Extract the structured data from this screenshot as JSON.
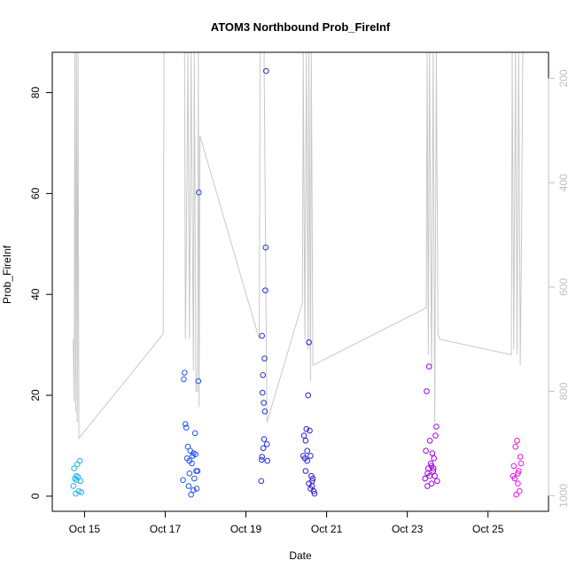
{
  "chart_data": {
    "type": "scatter",
    "title": "ATOM3 Northbound Prob_FireInf",
    "xlabel": "Date",
    "ylabel": "Prob_FireInf",
    "xlim": [
      14.2,
      26.5
    ],
    "ylim": [
      -3,
      88
    ],
    "y_ticks": [
      0,
      20,
      40,
      60,
      80
    ],
    "x_ticks": [
      {
        "value": 15,
        "label": "Oct 15"
      },
      {
        "value": 17,
        "label": "Oct 17"
      },
      {
        "value": 19,
        "label": "Oct 19"
      },
      {
        "value": 21,
        "label": "Oct 21"
      },
      {
        "value": 23,
        "label": "Oct 23"
      },
      {
        "value": 25,
        "label": "Oct 25"
      }
    ],
    "y2_reversed": true,
    "y2lim": [
      1030,
      150
    ],
    "y2_ticks": [
      200,
      400,
      600,
      800,
      1000
    ],
    "grid": false,
    "point_color_gradient": [
      "#22b4e8",
      "#2255ee",
      "#2222cc",
      "#8800dd",
      "#ee11ee"
    ],
    "line_color": "#c8c8c8",
    "points": [
      {
        "x": 14.72,
        "y": 2.0
      },
      {
        "x": 14.74,
        "y": 5.5
      },
      {
        "x": 14.76,
        "y": 3.5
      },
      {
        "x": 14.78,
        "y": 0.5
      },
      {
        "x": 14.8,
        "y": 4.0
      },
      {
        "x": 14.82,
        "y": 6.3
      },
      {
        "x": 14.84,
        "y": 3.8
      },
      {
        "x": 14.86,
        "y": 1.0
      },
      {
        "x": 14.88,
        "y": 7.0
      },
      {
        "x": 14.9,
        "y": 3.0
      },
      {
        "x": 14.92,
        "y": 0.8
      },
      {
        "x": 14.8,
        "y": 3.2
      },
      {
        "x": 17.44,
        "y": 3.2
      },
      {
        "x": 17.46,
        "y": 23.2
      },
      {
        "x": 17.48,
        "y": 24.5
      },
      {
        "x": 17.5,
        "y": 14.3
      },
      {
        "x": 17.52,
        "y": 13.6
      },
      {
        "x": 17.54,
        "y": 7.5
      },
      {
        "x": 17.56,
        "y": 9.8
      },
      {
        "x": 17.58,
        "y": 2.0
      },
      {
        "x": 17.6,
        "y": 7.0
      },
      {
        "x": 17.62,
        "y": 9.0
      },
      {
        "x": 17.64,
        "y": 0.3
      },
      {
        "x": 17.66,
        "y": 6.5
      },
      {
        "x": 17.68,
        "y": 8.0
      },
      {
        "x": 17.7,
        "y": 1.2
      },
      {
        "x": 17.72,
        "y": 3.5
      },
      {
        "x": 17.74,
        "y": 12.5
      },
      {
        "x": 17.75,
        "y": 8.3
      },
      {
        "x": 17.77,
        "y": 5.0
      },
      {
        "x": 17.78,
        "y": 1.5
      },
      {
        "x": 17.8,
        "y": 5.0
      },
      {
        "x": 17.82,
        "y": 22.8
      },
      {
        "x": 17.83,
        "y": 60.2
      },
      {
        "x": 17.6,
        "y": 4.5
      },
      {
        "x": 17.7,
        "y": 8.5
      },
      {
        "x": 19.38,
        "y": 3.0
      },
      {
        "x": 19.39,
        "y": 7.2
      },
      {
        "x": 19.4,
        "y": 31.8
      },
      {
        "x": 19.41,
        "y": 20.5
      },
      {
        "x": 19.42,
        "y": 24.0
      },
      {
        "x": 19.43,
        "y": 9.5
      },
      {
        "x": 19.44,
        "y": 18.5
      },
      {
        "x": 19.45,
        "y": 11.3
      },
      {
        "x": 19.46,
        "y": 27.3
      },
      {
        "x": 19.47,
        "y": 16.8
      },
      {
        "x": 19.48,
        "y": 40.8
      },
      {
        "x": 19.49,
        "y": 49.3
      },
      {
        "x": 19.5,
        "y": 84.3
      },
      {
        "x": 19.52,
        "y": 10.3
      },
      {
        "x": 19.53,
        "y": 7.0
      },
      {
        "x": 19.4,
        "y": 7.8
      },
      {
        "x": 20.42,
        "y": 8.0
      },
      {
        "x": 20.44,
        "y": 12.0
      },
      {
        "x": 20.46,
        "y": 7.5
      },
      {
        "x": 20.48,
        "y": 11.0
      },
      {
        "x": 20.5,
        "y": 13.3
      },
      {
        "x": 20.52,
        "y": 9.0
      },
      {
        "x": 20.54,
        "y": 20.0
      },
      {
        "x": 20.56,
        "y": 30.5
      },
      {
        "x": 20.58,
        "y": 13.0
      },
      {
        "x": 20.6,
        "y": 8.0
      },
      {
        "x": 20.62,
        "y": 4.0
      },
      {
        "x": 20.64,
        "y": 2.0
      },
      {
        "x": 20.66,
        "y": 3.5
      },
      {
        "x": 20.68,
        "y": 1.0
      },
      {
        "x": 20.7,
        "y": 0.5
      },
      {
        "x": 20.48,
        "y": 5.0
      },
      {
        "x": 20.52,
        "y": 7.0
      },
      {
        "x": 20.56,
        "y": 2.5
      },
      {
        "x": 20.6,
        "y": 1.5
      },
      {
        "x": 20.64,
        "y": 3.0
      },
      {
        "x": 23.44,
        "y": 3.5
      },
      {
        "x": 23.46,
        "y": 9.0
      },
      {
        "x": 23.48,
        "y": 20.8
      },
      {
        "x": 23.5,
        "y": 4.5
      },
      {
        "x": 23.52,
        "y": 5.5
      },
      {
        "x": 23.54,
        "y": 25.7
      },
      {
        "x": 23.56,
        "y": 11.0
      },
      {
        "x": 23.58,
        "y": 6.5
      },
      {
        "x": 23.6,
        "y": 2.5
      },
      {
        "x": 23.62,
        "y": 8.5
      },
      {
        "x": 23.64,
        "y": 5.0
      },
      {
        "x": 23.66,
        "y": 7.5
      },
      {
        "x": 23.68,
        "y": 4.0
      },
      {
        "x": 23.7,
        "y": 12.0
      },
      {
        "x": 23.72,
        "y": 13.8
      },
      {
        "x": 23.74,
        "y": 3.0
      },
      {
        "x": 23.5,
        "y": 2.0
      },
      {
        "x": 23.55,
        "y": 4.0
      },
      {
        "x": 23.6,
        "y": 6.0
      },
      {
        "x": 23.65,
        "y": 5.5
      },
      {
        "x": 25.62,
        "y": 4.0
      },
      {
        "x": 25.64,
        "y": 6.0
      },
      {
        "x": 25.66,
        "y": 3.5
      },
      {
        "x": 25.68,
        "y": 9.8
      },
      {
        "x": 25.7,
        "y": 0.3
      },
      {
        "x": 25.72,
        "y": 11.0
      },
      {
        "x": 25.74,
        "y": 2.5
      },
      {
        "x": 25.76,
        "y": 5.0
      },
      {
        "x": 25.78,
        "y": 1.0
      },
      {
        "x": 25.8,
        "y": 7.8
      },
      {
        "x": 25.82,
        "y": 6.5
      },
      {
        "x": 25.74,
        "y": 4.5
      }
    ],
    "line_series_right_axis": [
      [
        14.72,
        700
      ],
      [
        14.74,
        820
      ],
      [
        14.76,
        150
      ],
      [
        14.78,
        840
      ],
      [
        14.8,
        150
      ],
      [
        14.82,
        860
      ],
      [
        14.84,
        150
      ],
      [
        14.86,
        890
      ],
      [
        16.95,
        690
      ],
      [
        16.97,
        150
      ],
      [
        17.48,
        150
      ],
      [
        17.5,
        700
      ],
      [
        17.52,
        550
      ],
      [
        17.56,
        150
      ],
      [
        17.6,
        700
      ],
      [
        17.64,
        150
      ],
      [
        17.7,
        760
      ],
      [
        17.72,
        150
      ],
      [
        17.76,
        800
      ],
      [
        17.8,
        800
      ],
      [
        17.82,
        150
      ],
      [
        17.84,
        830
      ],
      [
        17.86,
        310
      ],
      [
        19.33,
        700
      ],
      [
        19.35,
        150
      ],
      [
        19.4,
        150
      ],
      [
        19.45,
        150
      ],
      [
        19.52,
        860
      ],
      [
        20.4,
        630
      ],
      [
        20.42,
        150
      ],
      [
        20.46,
        700
      ],
      [
        20.5,
        150
      ],
      [
        20.54,
        720
      ],
      [
        20.56,
        150
      ],
      [
        20.6,
        780
      ],
      [
        20.62,
        150
      ],
      [
        20.66,
        750
      ],
      [
        23.47,
        640
      ],
      [
        23.49,
        150
      ],
      [
        23.52,
        730
      ],
      [
        23.55,
        150
      ],
      [
        23.6,
        760
      ],
      [
        23.64,
        150
      ],
      [
        23.68,
        860
      ],
      [
        23.72,
        150
      ],
      [
        23.76,
        690
      ],
      [
        23.8,
        700
      ],
      [
        25.58,
        730
      ],
      [
        25.6,
        150
      ],
      [
        25.64,
        720
      ],
      [
        25.68,
        150
      ],
      [
        25.72,
        730
      ],
      [
        25.76,
        150
      ],
      [
        25.8,
        750
      ],
      [
        25.83,
        520
      ],
      [
        25.86,
        150
      ]
    ]
  }
}
